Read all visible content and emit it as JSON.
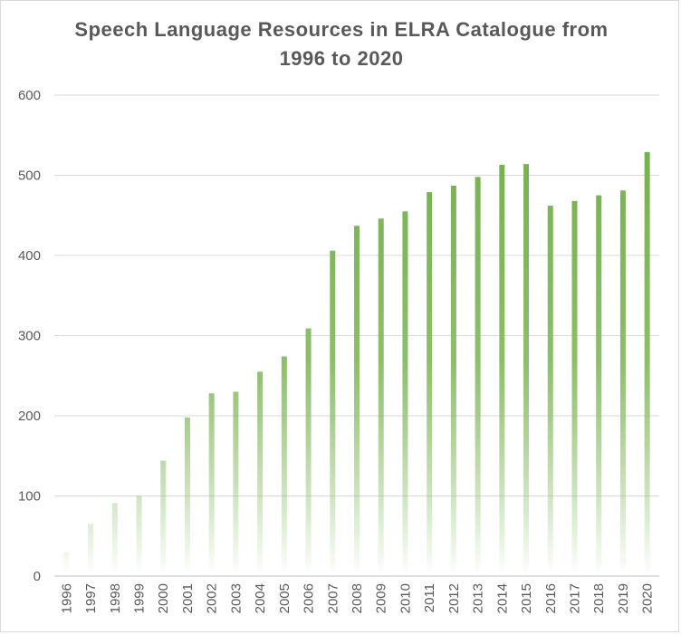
{
  "chart_data": {
    "type": "bar",
    "title": "Speech Language Resources in ELRA Catalogue from\n1996 to 2020",
    "xlabel": "",
    "ylabel": "",
    "ylim": [
      0,
      600
    ],
    "yticks": [
      0,
      100,
      200,
      300,
      400,
      500,
      600
    ],
    "grid": true,
    "legend": "none",
    "bar_color": "#70ad47",
    "categories": [
      "1996",
      "1997",
      "1998",
      "1999",
      "2000",
      "2001",
      "2002",
      "2003",
      "2004",
      "2005",
      "2006",
      "2007",
      "2008",
      "2009",
      "2010",
      "2011",
      "2012",
      "2013",
      "2014",
      "2015",
      "2016",
      "2017",
      "2018",
      "2019",
      "2020"
    ],
    "values": [
      30,
      65,
      91,
      100,
      144,
      198,
      228,
      230,
      255,
      274,
      309,
      406,
      437,
      446,
      455,
      479,
      487,
      498,
      513,
      514,
      462,
      468,
      475,
      481,
      529
    ]
  }
}
